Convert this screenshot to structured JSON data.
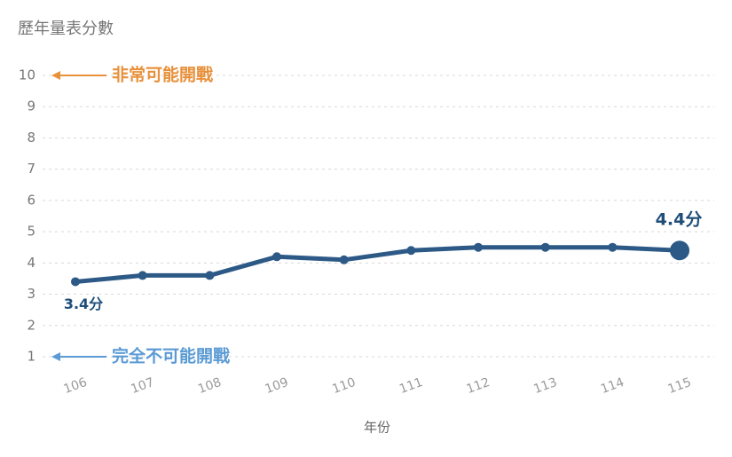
{
  "chart_data": {
    "type": "line",
    "title": "歷年量表分數",
    "x_label": "年份",
    "categories": [
      "106",
      "107",
      "108",
      "109",
      "110",
      "111",
      "112",
      "113",
      "114",
      "115"
    ],
    "series": [
      {
        "name": "分數",
        "color": "#2d5986",
        "values": [
          3.4,
          3.6,
          3.6,
          4.2,
          4.1,
          4.4,
          4.5,
          4.5,
          4.5,
          4.4
        ],
        "value_labels": [
          "3.4分",
          null,
          null,
          null,
          null,
          null,
          null,
          null,
          null,
          "4.4分"
        ]
      }
    ],
    "ylim": [
      1,
      10
    ],
    "yticks": [
      1,
      2,
      3,
      4,
      5,
      6,
      7,
      8,
      9,
      10
    ],
    "grid": true,
    "annotations": [
      {
        "text": "完全不可能開戰",
        "color": "#5b9bd5"
      },
      {
        "text": "非常可能開戰",
        "color": "#e8903a"
      }
    ]
  }
}
